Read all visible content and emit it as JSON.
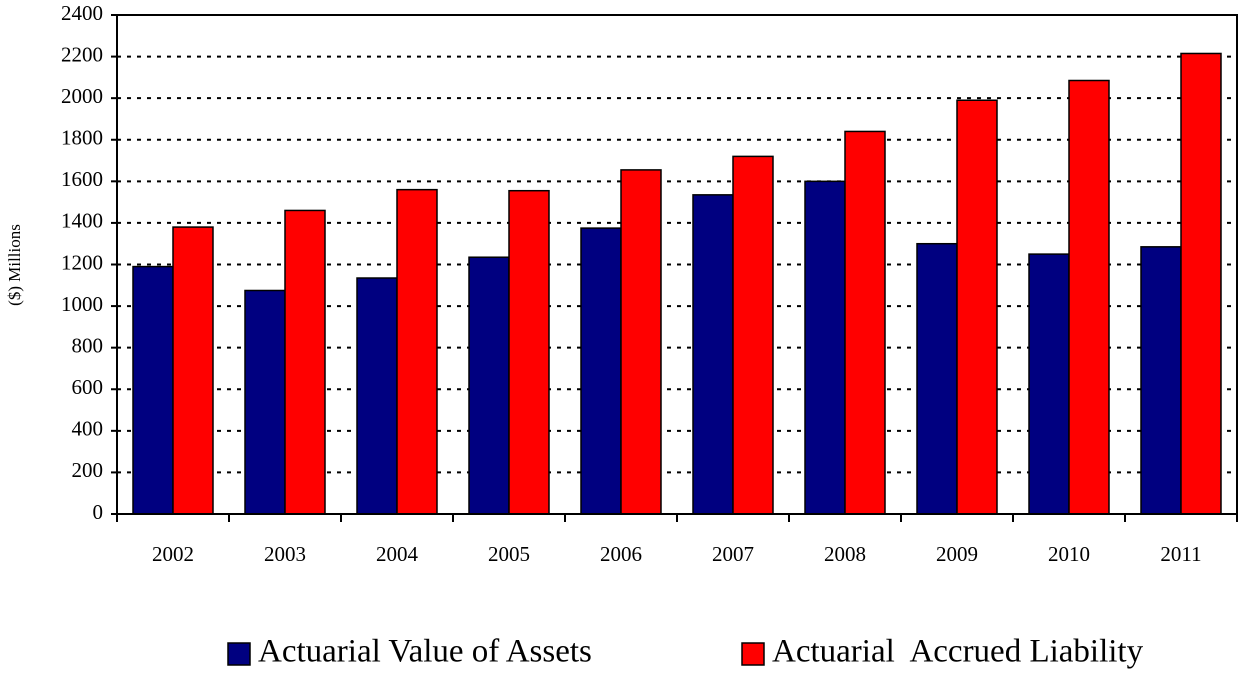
{
  "chart_data": {
    "type": "bar",
    "y_label": "($) Millions",
    "categories": [
      "2002",
      "2003",
      "2004",
      "2005",
      "2006",
      "2007",
      "2008",
      "2009",
      "2010",
      "2011"
    ],
    "series": [
      {
        "name": "Actuarial Value of Assets",
        "color": "#000080",
        "values": [
          1190,
          1075,
          1135,
          1235,
          1375,
          1535,
          1600,
          1300,
          1250,
          1285
        ]
      },
      {
        "name": "Actuarial  Accrued Liability",
        "color": "#ff0000",
        "values": [
          1380,
          1460,
          1560,
          1555,
          1655,
          1720,
          1840,
          1990,
          2085,
          2215
        ]
      }
    ],
    "ylim": [
      0,
      2400
    ],
    "yticks": [
      0,
      200,
      400,
      600,
      800,
      1000,
      1200,
      1400,
      1600,
      1800,
      2000,
      2200,
      2400
    ],
    "grid": true,
    "legend": "bottom"
  }
}
